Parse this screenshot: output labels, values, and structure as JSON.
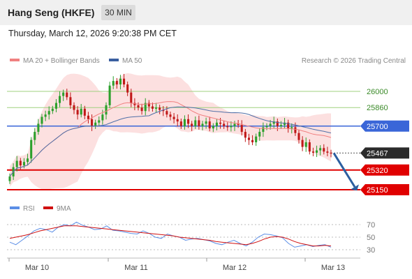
{
  "header": {
    "title": "Hang Seng (HKFE)",
    "timeframe": "30 MIN",
    "datetime": "Thursday, March 12, 2026 9:20:38 PM CET"
  },
  "legend": {
    "ma20_bb": "MA 20 + Bollinger Bands",
    "ma50": "MA 50",
    "copyright": "Research © 2026 Trading Central",
    "rsi": "RSI",
    "rsi_ma": "9MA"
  },
  "colors": {
    "up": "#2ca02c",
    "down": "#c01818",
    "bollinger_fill": "#fbd5d5",
    "ma20": "#f08080",
    "ma50": "#5070a8",
    "support": "#e00000",
    "pivot": "#3a66d8",
    "resistance": "#9fd07f",
    "current": "#2b2b2b",
    "arrow": "#2c5fa0",
    "rsi": "#5b8ee6",
    "rsi_ma": "#d01010"
  },
  "chart_data": {
    "type": "candlestick",
    "x_labels": [
      "Mar 10",
      "Mar 11",
      "Mar 12",
      "Mar 13"
    ],
    "price_levels": [
      {
        "value": 26000,
        "label": "26000",
        "kind": "resistance"
      },
      {
        "value": 25860,
        "label": "25860",
        "kind": "resistance"
      },
      {
        "value": 25700,
        "label": "25700",
        "kind": "pivot"
      },
      {
        "value": 25467,
        "label": "25467",
        "kind": "current"
      },
      {
        "value": 25320,
        "label": "25320",
        "kind": "support"
      },
      {
        "value": 25150,
        "label": "25150",
        "kind": "support"
      }
    ],
    "forecast_arrow": {
      "from": 25467,
      "to": 25150
    },
    "close_series": [
      25265,
      25345,
      25400,
      25360,
      25390,
      25420,
      25580,
      25650,
      25720,
      25780,
      25800,
      25830,
      25850,
      25900,
      25960,
      25990,
      25950,
      25880,
      25840,
      25800,
      25850,
      25790,
      25760,
      25700,
      25730,
      25750,
      25800,
      25880,
      26050,
      26090,
      26060,
      26110,
      26060,
      25990,
      25900,
      25880,
      25860,
      25830,
      25900,
      25870,
      25850,
      25860,
      25840,
      25830,
      25800,
      25780,
      25760,
      25740,
      25700,
      25760,
      25720,
      25700,
      25750,
      25700,
      25720,
      25740,
      25680,
      25700,
      25730,
      25720,
      25700,
      25690,
      25700,
      25720,
      25710,
      25650,
      25600,
      25580,
      25560,
      25610,
      25650,
      25690,
      25700,
      25720,
      25740,
      25700,
      25710,
      25730,
      25680,
      25690,
      25640,
      25580,
      25520,
      25560,
      25480,
      25470,
      25490,
      25510,
      25480,
      25470,
      25467
    ],
    "rsi": {
      "levels": [
        70,
        50,
        30
      ],
      "series": [
        {
          "name": "RSI",
          "values": [
            42,
            38,
            45,
            52,
            60,
            64,
            62,
            58,
            66,
            70,
            68,
            74,
            69,
            66,
            62,
            63,
            68,
            61,
            60,
            58,
            56,
            55,
            60,
            56,
            50,
            48,
            55,
            52,
            50,
            45,
            47,
            48,
            46,
            44,
            40,
            38,
            42,
            45,
            40,
            36,
            42,
            50,
            55,
            54,
            52,
            49,
            40,
            34,
            36,
            38,
            35,
            37,
            38,
            34
          ]
        },
        {
          "name": "9MA",
          "values": [
            48,
            50,
            52,
            54,
            57,
            60,
            62,
            64,
            66,
            68,
            68,
            68,
            67,
            66,
            65,
            64,
            63,
            62,
            61,
            60,
            59,
            58,
            57,
            56,
            55,
            54,
            53,
            52,
            50,
            49,
            48,
            47,
            46,
            45,
            43,
            42,
            41,
            40,
            39,
            38,
            40,
            43,
            47,
            50,
            51,
            50,
            47,
            43,
            40,
            38,
            36,
            36,
            37,
            36
          ]
        }
      ]
    }
  }
}
